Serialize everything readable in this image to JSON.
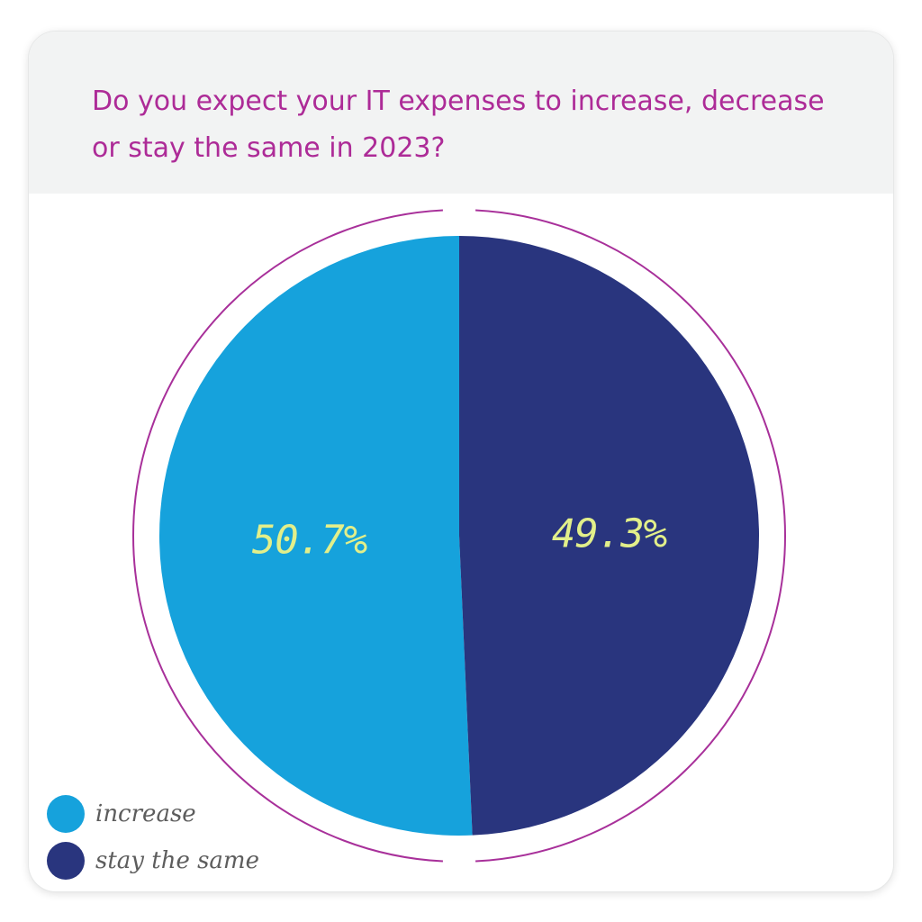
{
  "title": "Do you expect your IT expenses to increase, decrease or stay the same in 2023?",
  "colors": {
    "title": "#ad2b97",
    "ring": "#a8309a",
    "label_text": "#e2ef8a",
    "header_bg": "#f2f3f3"
  },
  "chart_data": {
    "type": "pie",
    "categories": [
      "increase",
      "stay the same"
    ],
    "values": [
      50.7,
      49.3
    ],
    "value_labels": [
      "50.7%",
      "49.3%"
    ],
    "colors": [
      "#16a2dc",
      "#29357e"
    ],
    "legend_position": "bottom-left"
  }
}
